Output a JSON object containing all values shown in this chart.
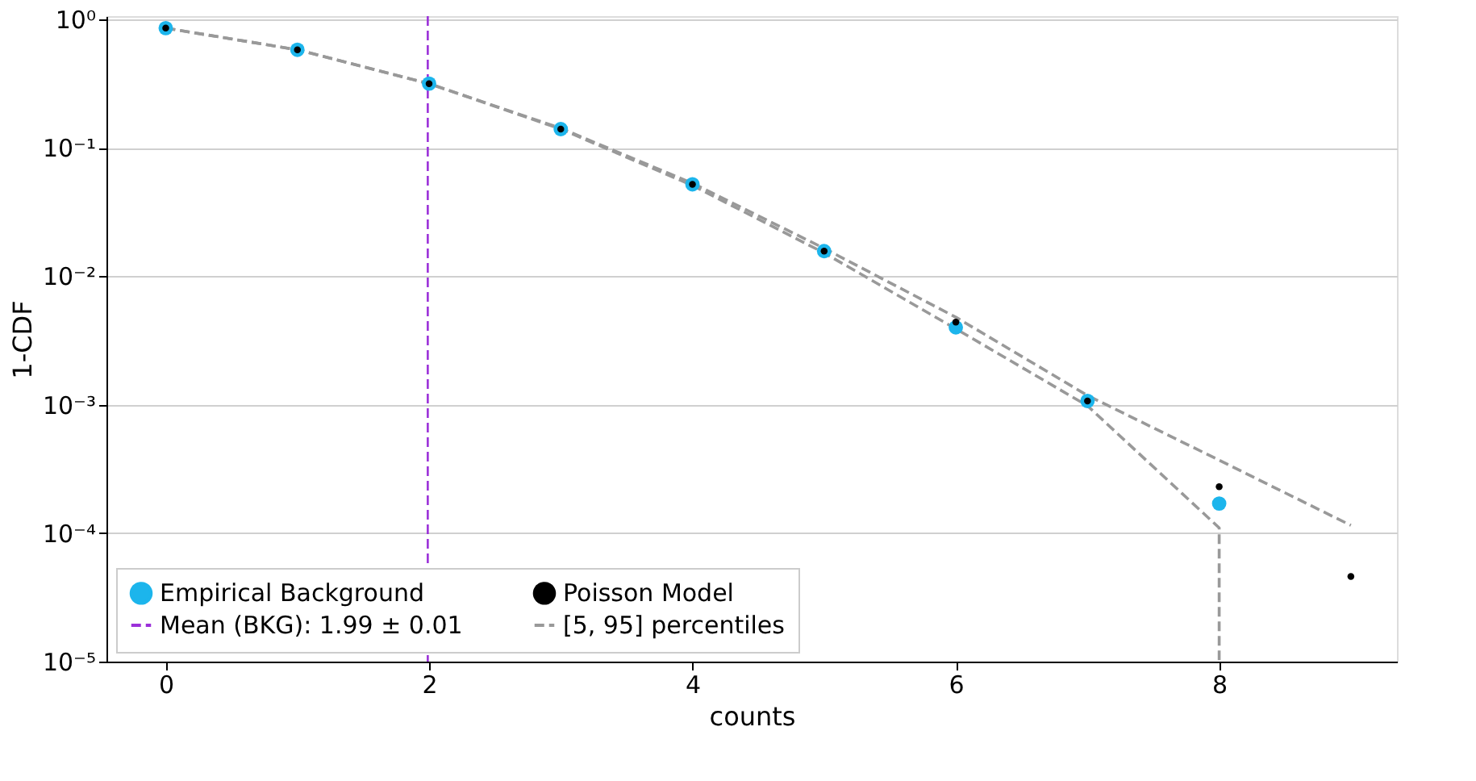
{
  "chart_data": {
    "type": "scatter",
    "xlabel": "counts",
    "ylabel": "1-CDF",
    "xlim": [
      -0.45,
      9.35
    ],
    "xticks": [
      0,
      2,
      4,
      6,
      8
    ],
    "ylim": [
      1e-05,
      1.06
    ],
    "yticks": [
      {
        "value": 1,
        "label": "10⁰"
      },
      {
        "value": 0.1,
        "label": "10⁻¹"
      },
      {
        "value": 0.01,
        "label": "10⁻²"
      },
      {
        "value": 0.001,
        "label": "10⁻³"
      },
      {
        "value": 0.0001,
        "label": "10⁻⁴"
      },
      {
        "value": 1e-05,
        "label": "10⁻⁵"
      }
    ],
    "log": "y",
    "grid": "y",
    "legend": "bottom",
    "marker": "circle",
    "series": [
      {
        "name": "Empirical Background",
        "color": "#1cb5ec",
        "x": [
          0,
          1,
          2,
          3,
          4,
          5,
          6,
          7,
          8
        ],
        "values": [
          0.855,
          0.58,
          0.316,
          0.14,
          0.052,
          0.0157,
          0.004,
          0.00107,
          0.00017
        ]
      },
      {
        "name": "Poisson Model",
        "color": "#000000",
        "x": [
          0,
          1,
          2,
          3,
          4,
          5,
          6,
          7,
          8,
          9
        ],
        "values": [
          0.855,
          0.58,
          0.316,
          0.14,
          0.052,
          0.0157,
          0.0044,
          0.00107,
          0.00023,
          4.6e-05
        ]
      },
      {
        "name": "[5, 95] percentiles",
        "type": "line",
        "line_style": "dashed",
        "marker": "none",
        "color": "#999999",
        "x": [
          0,
          1,
          2,
          3,
          4,
          5,
          6,
          7,
          8,
          9
        ],
        "values": [
          0.855,
          0.58,
          0.316,
          0.142,
          0.053,
          0.0165,
          0.0048,
          0.00118,
          0.00037,
          0.000115
        ]
      },
      {
        "type": "line",
        "line_style": "dashed",
        "marker": "none",
        "color": "#999999",
        "x": [
          0,
          1,
          2,
          3,
          4,
          5,
          6,
          7,
          8,
          8
        ],
        "values": [
          0.855,
          0.58,
          0.316,
          0.14,
          0.051,
          0.0152,
          0.0039,
          0.00098,
          0.00011,
          1e-05
        ]
      }
    ],
    "ref_lines": [
      {
        "axis": "x",
        "value": 1.99,
        "label": "Mean (BKG): 1.99 ± 0.01",
        "color": "#9b30d9",
        "line_style": "dashed"
      }
    ]
  }
}
